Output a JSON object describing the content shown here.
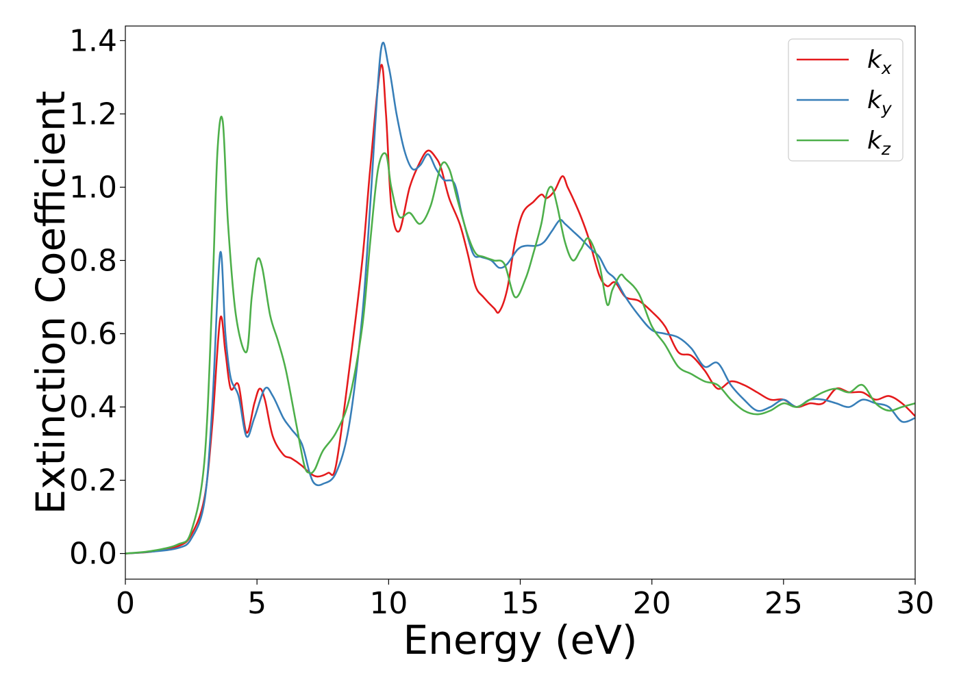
{
  "chart_data": {
    "type": "line",
    "title": "",
    "xlabel": "Energy (eV)",
    "ylabel": "Extinction Coefficient",
    "xlim": [
      0,
      30
    ],
    "ylim": [
      -0.07,
      1.44
    ],
    "xticks": [
      0,
      5,
      10,
      15,
      20,
      25,
      30
    ],
    "yticks": [
      0.0,
      0.2,
      0.4,
      0.6,
      0.8,
      1.0,
      1.2,
      1.4
    ],
    "xtick_labels": [
      "0",
      "5",
      "10",
      "15",
      "20",
      "25",
      "30"
    ],
    "ytick_labels": [
      "0.0",
      "0.2",
      "0.4",
      "0.6",
      "0.8",
      "1.0",
      "1.2",
      "1.4"
    ],
    "grid": false,
    "legend_position": "top-right",
    "series": [
      {
        "name": "k_x",
        "label_base": "k",
        "label_sub": "x",
        "color": "#e41a1c",
        "x": [
          0,
          1,
          2,
          2.5,
          3,
          3.3,
          3.6,
          3.8,
          4.0,
          4.3,
          4.6,
          4.9,
          5.1,
          5.3,
          5.6,
          6.0,
          6.3,
          6.7,
          7.0,
          7.3,
          7.7,
          8.0,
          8.5,
          9.0,
          9.3,
          9.7,
          9.9,
          10.1,
          10.4,
          10.8,
          11.2,
          11.5,
          11.8,
          12.0,
          12.3,
          12.7,
          13.0,
          13.3,
          13.6,
          14.0,
          14.2,
          14.5,
          14.8,
          15.1,
          15.5,
          15.8,
          16.0,
          16.3,
          16.6,
          16.8,
          17.0,
          17.3,
          17.6,
          18.0,
          18.3,
          18.6,
          19.0,
          19.5,
          20.0,
          20.5,
          21.0,
          21.5,
          22.0,
          22.5,
          23.0,
          23.5,
          24.0,
          24.5,
          25.0,
          25.5,
          26.0,
          26.5,
          27.0,
          27.5,
          28.0,
          28.5,
          29.0,
          29.5,
          30.0
        ],
        "values": [
          0.0,
          0.005,
          0.02,
          0.05,
          0.15,
          0.35,
          0.64,
          0.55,
          0.45,
          0.46,
          0.33,
          0.41,
          0.45,
          0.42,
          0.32,
          0.27,
          0.26,
          0.24,
          0.22,
          0.21,
          0.22,
          0.24,
          0.5,
          0.8,
          1.05,
          1.33,
          1.2,
          0.95,
          0.88,
          1.0,
          1.07,
          1.1,
          1.08,
          1.05,
          0.97,
          0.9,
          0.82,
          0.73,
          0.7,
          0.67,
          0.66,
          0.72,
          0.85,
          0.93,
          0.96,
          0.98,
          0.97,
          0.99,
          1.03,
          1.0,
          0.97,
          0.92,
          0.86,
          0.76,
          0.73,
          0.74,
          0.7,
          0.69,
          0.66,
          0.62,
          0.55,
          0.54,
          0.5,
          0.45,
          0.47,
          0.46,
          0.44,
          0.42,
          0.42,
          0.4,
          0.41,
          0.41,
          0.45,
          0.44,
          0.44,
          0.42,
          0.43,
          0.41,
          0.375
        ]
      },
      {
        "name": "k_y",
        "label_base": "k",
        "label_sub": "y",
        "color": "#377eb8",
        "x": [
          0,
          1,
          2,
          2.5,
          3,
          3.3,
          3.6,
          3.8,
          4.0,
          4.3,
          4.6,
          4.9,
          5.3,
          5.6,
          6.0,
          6.3,
          6.7,
          7.0,
          7.2,
          7.5,
          8.0,
          8.5,
          9.0,
          9.3,
          9.7,
          10.0,
          10.3,
          10.6,
          10.9,
          11.2,
          11.5,
          11.8,
          12.1,
          12.5,
          12.8,
          13.2,
          13.5,
          13.9,
          14.2,
          14.5,
          14.9,
          15.2,
          15.6,
          15.9,
          16.2,
          16.5,
          16.7,
          17.0,
          17.3,
          17.7,
          18.0,
          18.3,
          18.6,
          19.0,
          19.5,
          20.0,
          20.5,
          21.0,
          21.5,
          22.0,
          22.5,
          23.0,
          23.5,
          24.0,
          24.5,
          25.0,
          25.5,
          26.0,
          26.5,
          27.0,
          27.5,
          28.0,
          28.5,
          29.0,
          29.5,
          30.0
        ],
        "values": [
          0.0,
          0.005,
          0.015,
          0.04,
          0.14,
          0.4,
          0.82,
          0.6,
          0.48,
          0.43,
          0.32,
          0.37,
          0.45,
          0.43,
          0.37,
          0.34,
          0.3,
          0.22,
          0.19,
          0.19,
          0.22,
          0.35,
          0.65,
          0.95,
          1.37,
          1.33,
          1.2,
          1.1,
          1.05,
          1.06,
          1.09,
          1.05,
          1.02,
          1.01,
          0.92,
          0.82,
          0.81,
          0.8,
          0.78,
          0.79,
          0.83,
          0.84,
          0.84,
          0.85,
          0.88,
          0.91,
          0.9,
          0.88,
          0.86,
          0.83,
          0.81,
          0.77,
          0.75,
          0.7,
          0.65,
          0.61,
          0.6,
          0.59,
          0.56,
          0.51,
          0.52,
          0.46,
          0.42,
          0.39,
          0.4,
          0.42,
          0.4,
          0.42,
          0.42,
          0.41,
          0.4,
          0.42,
          0.41,
          0.4,
          0.36,
          0.37
        ]
      },
      {
        "name": "k_z",
        "label_base": "k",
        "label_sub": "z",
        "color": "#4daf4a",
        "x": [
          0,
          1,
          2,
          2.5,
          3,
          3.3,
          3.5,
          3.7,
          3.9,
          4.2,
          4.6,
          4.8,
          5.0,
          5.2,
          5.5,
          5.8,
          6.1,
          6.5,
          6.8,
          7.0,
          7.2,
          7.5,
          8.0,
          8.5,
          9.0,
          9.3,
          9.6,
          9.9,
          10.1,
          10.4,
          10.8,
          11.2,
          11.6,
          12.0,
          12.3,
          12.6,
          13.0,
          13.3,
          13.6,
          14.0,
          14.4,
          14.8,
          15.2,
          15.5,
          15.8,
          16.0,
          16.2,
          16.4,
          16.7,
          17.0,
          17.3,
          17.6,
          18.0,
          18.3,
          18.5,
          18.8,
          19.0,
          19.5,
          20.0,
          20.5,
          21.0,
          21.5,
          22.0,
          22.5,
          23.0,
          23.5,
          24.0,
          24.5,
          25.0,
          25.5,
          26.0,
          26.5,
          27.0,
          27.5,
          28.0,
          28.5,
          29.0,
          29.5,
          30.0
        ],
        "values": [
          0.0,
          0.007,
          0.025,
          0.06,
          0.25,
          0.7,
          1.1,
          1.18,
          0.9,
          0.65,
          0.55,
          0.7,
          0.8,
          0.78,
          0.65,
          0.58,
          0.5,
          0.35,
          0.24,
          0.22,
          0.23,
          0.28,
          0.33,
          0.42,
          0.62,
          0.85,
          1.05,
          1.09,
          1.0,
          0.92,
          0.93,
          0.9,
          0.95,
          1.06,
          1.05,
          0.97,
          0.87,
          0.82,
          0.81,
          0.8,
          0.79,
          0.7,
          0.75,
          0.82,
          0.9,
          0.98,
          1.0,
          0.95,
          0.85,
          0.8,
          0.83,
          0.86,
          0.79,
          0.68,
          0.72,
          0.76,
          0.75,
          0.71,
          0.62,
          0.57,
          0.51,
          0.49,
          0.47,
          0.46,
          0.42,
          0.39,
          0.38,
          0.39,
          0.41,
          0.4,
          0.42,
          0.44,
          0.45,
          0.44,
          0.46,
          0.41,
          0.39,
          0.4,
          0.41
        ]
      }
    ]
  }
}
